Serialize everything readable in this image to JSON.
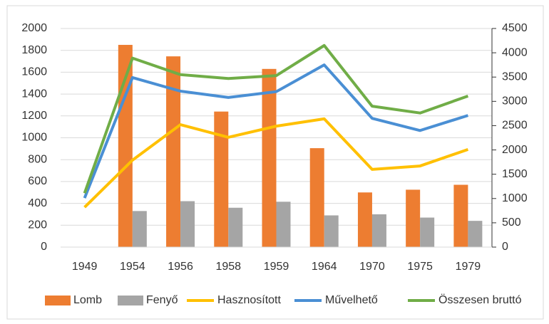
{
  "chart_data": {
    "type": "combo",
    "categories": [
      "1949",
      "1954",
      "1956",
      "1958",
      "1959",
      "1964",
      "1970",
      "1975",
      "1979"
    ],
    "series": [
      {
        "name": "Lomb",
        "type": "bar",
        "color": "#ed7d31",
        "values": [
          null,
          1850,
          1745,
          1240,
          1630,
          905,
          500,
          525,
          570
        ]
      },
      {
        "name": "Fenyő",
        "type": "bar",
        "color": "#a5a5a5",
        "values": [
          null,
          330,
          420,
          360,
          415,
          290,
          300,
          270,
          240
        ]
      },
      {
        "name": "Hasznosított",
        "type": "line",
        "axis": "y2",
        "color": "#ffc000",
        "values": [
          820,
          1790,
          2520,
          2260,
          2490,
          2640,
          1600,
          1670,
          2010
        ]
      },
      {
        "name": "Művelhető",
        "type": "line",
        "axis": "y2",
        "color": "#4a8fd4",
        "values": [
          1010,
          3490,
          3210,
          3080,
          3200,
          3750,
          2650,
          2400,
          2710
        ]
      },
      {
        "name": "Összesen bruttó",
        "type": "line",
        "axis": "y2",
        "color": "#70ad47",
        "values": [
          1110,
          3890,
          3550,
          3470,
          3530,
          4150,
          2900,
          2760,
          3110
        ]
      }
    ],
    "ylim": [
      0,
      2000
    ],
    "yticks": [
      0,
      200,
      400,
      600,
      800,
      1000,
      1200,
      1400,
      1600,
      1800,
      2000
    ],
    "y2lim": [
      0,
      4500
    ],
    "y2ticks": [
      0,
      500,
      1000,
      1500,
      2000,
      2500,
      3000,
      3500,
      4000,
      4500
    ],
    "grid": true,
    "legend": "bottom"
  }
}
